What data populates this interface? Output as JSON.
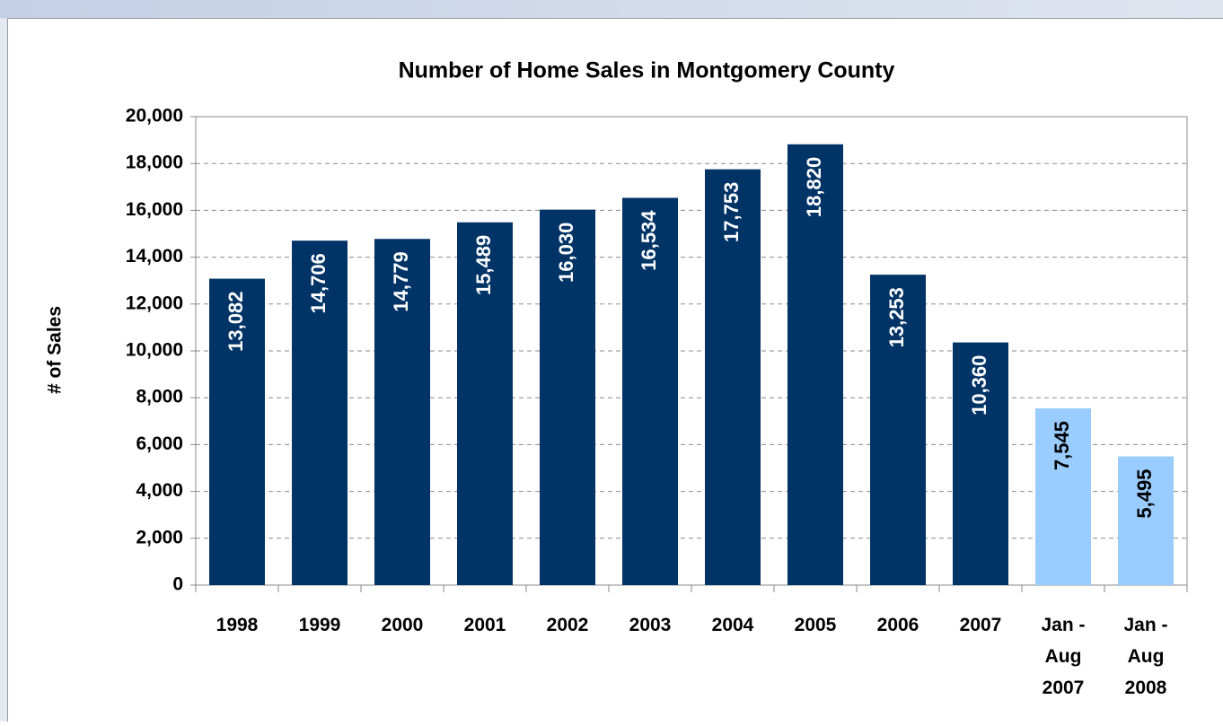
{
  "chart_data": {
    "type": "bar",
    "title": "Number of Home Sales in Montgomery County",
    "y_label": "# of Sales",
    "categories": [
      "1998",
      "1999",
      "2000",
      "2001",
      "2002",
      "2003",
      "2004",
      "2005",
      "2006",
      "2007",
      "Jan -\nAug\n2007",
      "Jan -\nAug\n2008"
    ],
    "values": [
      13082,
      14706,
      14779,
      15489,
      16030,
      16534,
      17753,
      18820,
      13253,
      10360,
      7545,
      5495
    ],
    "value_labels": [
      "13,082",
      "14,706",
      "14,779",
      "15,489",
      "16,030",
      "16,534",
      "17,753",
      "18,820",
      "13,253",
      "10,360",
      "7,545",
      "5,495"
    ],
    "colors": [
      "#003366",
      "#003366",
      "#003366",
      "#003366",
      "#003366",
      "#003366",
      "#003366",
      "#003366",
      "#003366",
      "#003366",
      "#99ccff",
      "#99ccff"
    ],
    "ylim": [
      0,
      20000
    ],
    "yticks": [
      0,
      {
        "value": 2000,
        "label": "2,000"
      },
      {
        "value": 4000,
        "label": "4,000"
      },
      {
        "value": 6000,
        "label": "6,000"
      },
      {
        "value": 8000,
        "label": "8,000"
      },
      {
        "value": 10000,
        "label": "10,000"
      },
      {
        "value": 12000,
        "label": "12,000"
      },
      {
        "value": 14000,
        "label": "14,000"
      },
      {
        "value": 16000,
        "label": "16,000"
      },
      {
        "value": 18000,
        "label": "18,000"
      },
      {
        "value": 20000,
        "label": "20,000"
      }
    ],
    "grid": true
  }
}
